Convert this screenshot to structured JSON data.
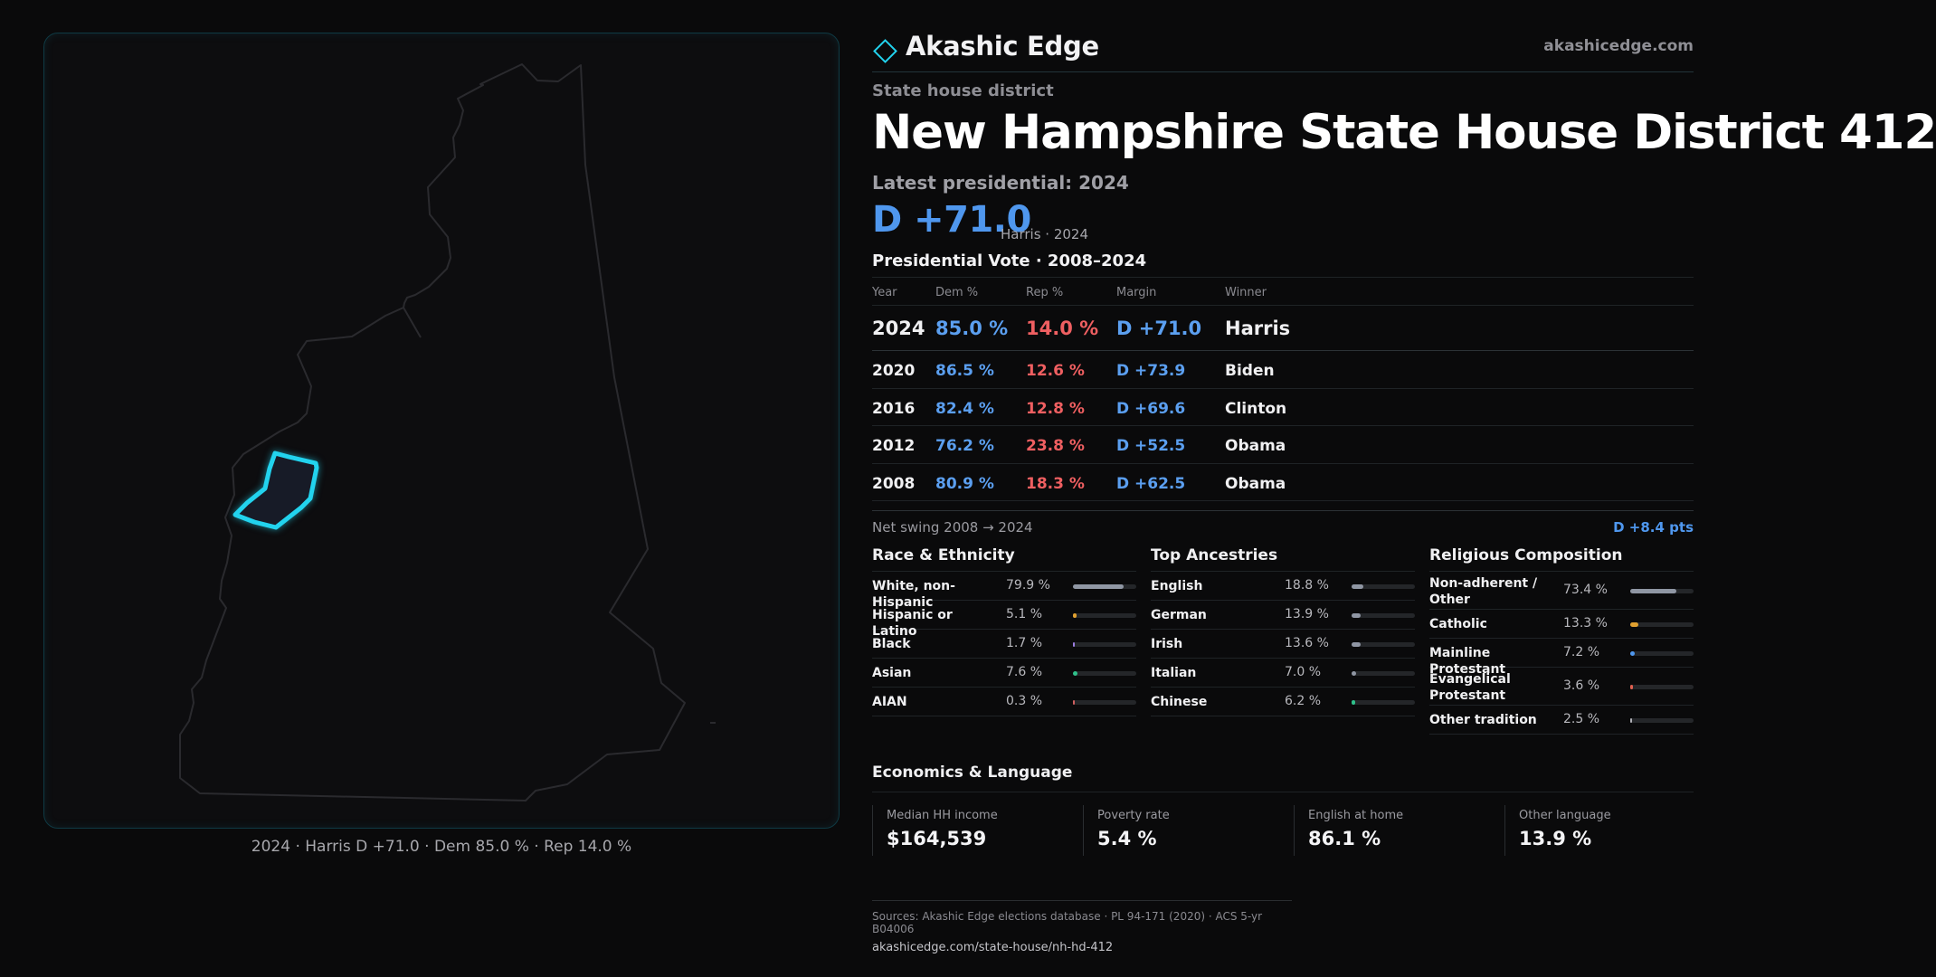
{
  "brand": {
    "name": "Akashic Edge",
    "url": "akashicedge.com"
  },
  "kicker": "State house district",
  "title": "New Hampshire State House District 412",
  "latest_label": "Latest presidential: 2024",
  "headline_margin": "D +71.0",
  "headline_sub": "Harris · 2024",
  "pres_title": "Presidential Vote · 2008–2024",
  "pres_table": {
    "headers": {
      "year": "Year",
      "dem": "Dem %",
      "rep": "Rep %",
      "margin": "Margin",
      "winner": "Winner"
    },
    "rows": [
      {
        "year": "2024",
        "dem": "85.0 %",
        "rep": "14.0 %",
        "margin": "D +71.0",
        "winner": "Harris"
      },
      {
        "year": "2020",
        "dem": "86.5 %",
        "rep": "12.6 %",
        "margin": "D +73.9",
        "winner": "Biden"
      },
      {
        "year": "2016",
        "dem": "82.4 %",
        "rep": "12.8 %",
        "margin": "D +69.6",
        "winner": "Clinton"
      },
      {
        "year": "2012",
        "dem": "76.2 %",
        "rep": "23.8 %",
        "margin": "D +52.5",
        "winner": "Obama"
      },
      {
        "year": "2008",
        "dem": "80.9 %",
        "rep": "18.3 %",
        "margin": "D +62.5",
        "winner": "Obama"
      }
    ]
  },
  "swing": {
    "label": "Net swing 2008 → 2024",
    "value": "D +8.4 pts"
  },
  "race": {
    "title": "Race & Ethnicity",
    "items": [
      {
        "label": "White, non-Hispanic",
        "value": "79.9 %",
        "pct": 79.9,
        "color": "#8f96a3"
      },
      {
        "label": "Hispanic or Latino",
        "value": "5.1 %",
        "pct": 5.1,
        "color": "#e0a030"
      },
      {
        "label": "Black",
        "value": "1.7 %",
        "pct": 1.7,
        "color": "#9b7de0"
      },
      {
        "label": "Asian",
        "value": "7.6 %",
        "pct": 7.6,
        "color": "#2fc08a"
      },
      {
        "label": "AIAN",
        "value": "0.3 %",
        "pct": 0.3,
        "color": "#d06060"
      }
    ]
  },
  "ancestry": {
    "title": "Top Ancestries",
    "items": [
      {
        "label": "English",
        "value": "18.8 %",
        "pct": 18.8,
        "color": "#8f96a3"
      },
      {
        "label": "German",
        "value": "13.9 %",
        "pct": 13.9,
        "color": "#8f96a3"
      },
      {
        "label": "Irish",
        "value": "13.6 %",
        "pct": 13.6,
        "color": "#8f96a3"
      },
      {
        "label": "Italian",
        "value": "7.0 %",
        "pct": 7.0,
        "color": "#8f96a3"
      },
      {
        "label": "Chinese",
        "value": "6.2 %",
        "pct": 6.2,
        "color": "#2fc08a"
      }
    ]
  },
  "religion": {
    "title": "Religious Composition",
    "items": [
      {
        "label": "Non-adherent / Other",
        "value": "73.4 %",
        "pct": 73.4,
        "color": "#8f96a3"
      },
      {
        "label": "Catholic",
        "value": "13.3 %",
        "pct": 13.3,
        "color": "#e0a030"
      },
      {
        "label": "Mainline Protestant",
        "value": "7.2 %",
        "pct": 7.2,
        "color": "#4f97ee"
      },
      {
        "label": "Evangelical Protestant",
        "value": "3.6 %",
        "pct": 3.6,
        "color": "#e06050"
      },
      {
        "label": "Other tradition",
        "value": "2.5 %",
        "pct": 2.5,
        "color": "#b0b0b6"
      }
    ]
  },
  "econ": {
    "title": "Economics & Language",
    "items": [
      {
        "label": "Median HH income",
        "value": "$164,539"
      },
      {
        "label": "Poverty rate",
        "value": "5.4 %"
      },
      {
        "label": "English at home",
        "value": "86.1 %"
      },
      {
        "label": "Other language",
        "value": "13.9 %"
      }
    ]
  },
  "map_caption": "2024 · Harris D +71.0 · Dem 85.0 % · Rep 14.0 %",
  "footer": {
    "sources": "Sources: Akashic Edge elections database · PL 94-171 (2020) · ACS 5-yr B04006",
    "url": "akashicedge.com/state-house/nh-hd-412"
  },
  "colors": {
    "accent": "#4f97ee",
    "dem": "#5b9ff0",
    "rep": "#ef5f61",
    "district": "#22d3ee"
  },
  "icons": {
    "brand": "diamond-logo-icon"
  }
}
